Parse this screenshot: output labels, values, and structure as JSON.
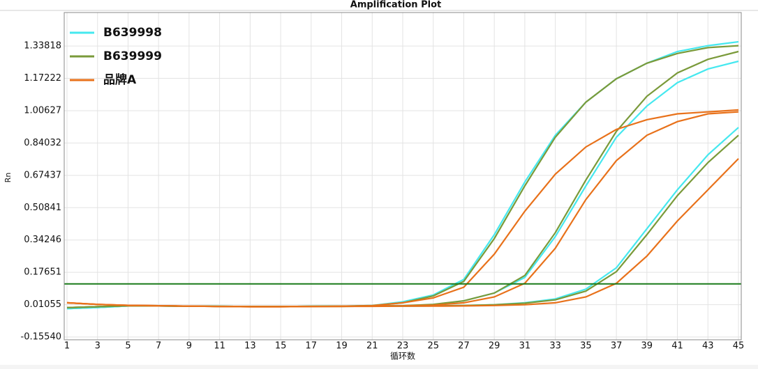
{
  "chart_data": {
    "type": "line",
    "title": "Amplification Plot",
    "x_label": "循环数",
    "y_label": "Rn",
    "x": [
      1,
      3,
      5,
      7,
      9,
      11,
      13,
      15,
      17,
      19,
      21,
      23,
      25,
      27,
      29,
      31,
      33,
      35,
      37,
      39,
      41,
      43,
      45
    ],
    "xlim": [
      1,
      45
    ],
    "xticks": [
      1,
      3,
      5,
      7,
      9,
      11,
      13,
      15,
      17,
      19,
      21,
      23,
      25,
      27,
      29,
      31,
      33,
      35,
      37,
      39,
      41,
      43,
      45
    ],
    "ylim": [
      -0.1554,
      1.51
    ],
    "yticks": [
      {
        "value": -0.1554,
        "label": "-0.15540"
      },
      0.01055,
      0.17651,
      0.34246,
      0.50841,
      0.67437,
      0.84032,
      1.00627,
      1.17222,
      1.33818
    ],
    "grid": true,
    "threshold": {
      "value": 0.117,
      "color": "#1a7a1a"
    },
    "series": [
      {
        "name": "B639998",
        "color": "#45e8ef",
        "curves": [
          [
            -0.01,
            -0.004,
            0.004,
            0.004,
            0.003,
            0.002,
            0.001,
            0.001,
            0.002,
            0.003,
            0.006,
            0.025,
            0.06,
            0.14,
            0.37,
            0.64,
            0.88,
            1.05,
            1.17,
            1.25,
            1.31,
            1.34,
            1.36
          ],
          [
            -0.01,
            -0.004,
            0.004,
            0.004,
            0.003,
            0.002,
            0.001,
            0.001,
            0.002,
            0.003,
            0.004,
            0.005,
            0.01,
            0.03,
            0.07,
            0.15,
            0.36,
            0.62,
            0.87,
            1.03,
            1.15,
            1.22,
            1.26
          ],
          [
            -0.01,
            -0.004,
            0.004,
            0.004,
            0.003,
            0.002,
            0.001,
            0.001,
            0.002,
            0.002,
            0.003,
            0.003,
            0.004,
            0.006,
            0.01,
            0.02,
            0.04,
            0.09,
            0.2,
            0.4,
            0.6,
            0.78,
            0.92
          ]
        ]
      },
      {
        "name": "B639999",
        "color": "#7a9a3a",
        "curves": [
          [
            -0.005,
            0.0,
            0.005,
            0.004,
            0.003,
            0.002,
            0.001,
            0.001,
            0.002,
            0.003,
            0.006,
            0.02,
            0.055,
            0.13,
            0.35,
            0.62,
            0.87,
            1.05,
            1.17,
            1.25,
            1.3,
            1.33,
            1.34
          ],
          [
            -0.005,
            0.0,
            0.005,
            0.004,
            0.003,
            0.002,
            0.001,
            0.001,
            0.002,
            0.003,
            0.004,
            0.005,
            0.012,
            0.03,
            0.07,
            0.16,
            0.38,
            0.65,
            0.9,
            1.08,
            1.2,
            1.27,
            1.31
          ],
          [
            -0.005,
            0.0,
            0.005,
            0.004,
            0.003,
            0.002,
            0.001,
            0.001,
            0.002,
            0.002,
            0.003,
            0.003,
            0.004,
            0.006,
            0.01,
            0.018,
            0.035,
            0.08,
            0.18,
            0.37,
            0.57,
            0.74,
            0.88
          ]
        ]
      },
      {
        "name": "品牌A",
        "color": "#e8711a",
        "curves": [
          [
            0.02,
            0.012,
            0.007,
            0.005,
            0.003,
            0.001,
            0.0,
            0.0,
            0.001,
            0.002,
            0.005,
            0.02,
            0.045,
            0.1,
            0.27,
            0.49,
            0.68,
            0.82,
            0.91,
            0.96,
            0.99,
            1.0,
            1.01
          ],
          [
            0.02,
            0.012,
            0.007,
            0.005,
            0.003,
            0.001,
            0.0,
            0.0,
            0.001,
            0.002,
            0.003,
            0.004,
            0.008,
            0.02,
            0.05,
            0.12,
            0.3,
            0.55,
            0.75,
            0.88,
            0.95,
            0.99,
            1.0
          ],
          [
            0.02,
            0.012,
            0.007,
            0.005,
            0.003,
            0.001,
            0.0,
            0.0,
            0.001,
            0.002,
            0.002,
            0.003,
            0.003,
            0.004,
            0.006,
            0.01,
            0.02,
            0.05,
            0.12,
            0.26,
            0.44,
            0.6,
            0.76
          ]
        ]
      }
    ]
  }
}
